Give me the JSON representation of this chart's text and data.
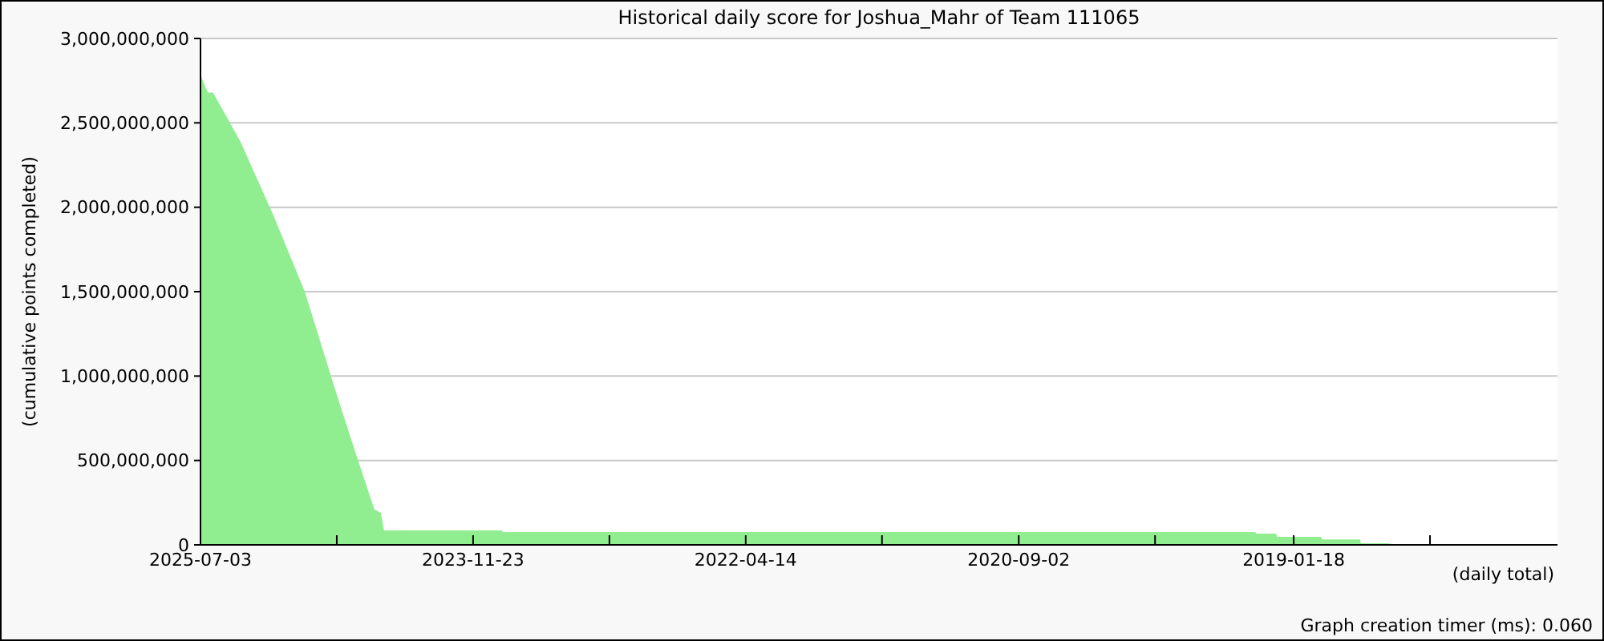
{
  "chart_data": {
    "type": "area",
    "title": "Historical daily score for Joshua_Mahr of Team 111065",
    "xlabel": "(daily total)",
    "ylabel": "(cumulative points completed)",
    "annotations": [
      "Graph creation timer (ms): 0.060"
    ],
    "x": [
      "2025-07-03",
      "2025-07-01",
      "2025-06-17",
      "2025-06-06",
      "2025-04-08",
      "2025-01-28",
      "2024-11-20",
      "2024-09-11",
      "2024-07-28",
      "2024-06-23",
      "2024-06-09",
      "2024-06-02",
      "2023-09-22",
      "2023-09-20",
      "2019-04-11",
      "2019-04-09",
      "2019-02-25",
      "2019-02-23",
      "2018-11-20",
      "2018-11-18",
      "2018-08-28",
      "2018-08-26",
      "2018-06-27",
      "2018-06-20"
    ],
    "series": [
      {
        "color": "#90ee90",
        "values": [
          2770000000,
          2770000000,
          2680000000,
          2680000000,
          2390000000,
          1960000000,
          1500000000,
          880000000,
          500000000,
          210000000,
          190000000,
          85000000,
          85000000,
          76000000,
          76000000,
          66000000,
          66000000,
          47000000,
          47000000,
          32000000,
          32000000,
          9000000,
          9000000,
          0
        ]
      }
    ],
    "xlim": [
      "2025-07-03",
      "2017-06-28"
    ],
    "xticks": [
      {
        "value": "2025-07-03",
        "label": "2025-07-03"
      },
      {
        "value": "2024-09-12",
        "label": null
      },
      {
        "value": "2023-11-23",
        "label": "2023-11-23"
      },
      {
        "value": "2023-02-02",
        "label": null
      },
      {
        "value": "2022-04-14",
        "label": "2022-04-14"
      },
      {
        "value": "2021-06-24",
        "label": null
      },
      {
        "value": "2020-09-02",
        "label": "2020-09-02"
      },
      {
        "value": "2019-11-13",
        "label": null
      },
      {
        "value": "2019-01-18",
        "label": "2019-01-18"
      },
      {
        "value": "2018-03-30",
        "label": null
      }
    ],
    "ylim": [
      0,
      3000000000
    ],
    "yticks": [
      {
        "value": 0,
        "label": "0"
      },
      {
        "value": 500000000,
        "label": "500,000,000"
      },
      {
        "value": 1000000000,
        "label": "1,000,000,000"
      },
      {
        "value": 1500000000,
        "label": "1,500,000,000"
      },
      {
        "value": 2000000000,
        "label": "2,000,000,000"
      },
      {
        "value": 2500000000,
        "label": "2,500,000,000"
      },
      {
        "value": 3000000000,
        "label": "3,000,000,000"
      }
    ],
    "grid": "y"
  }
}
